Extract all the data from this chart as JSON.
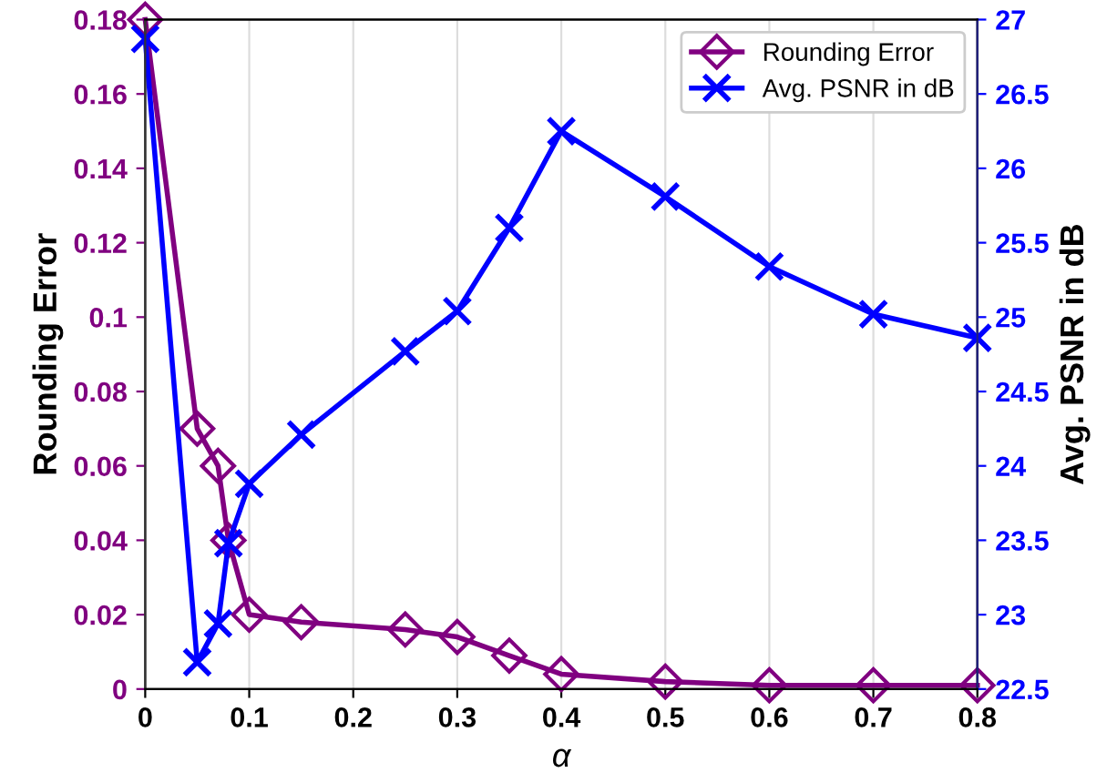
{
  "chart_data": {
    "type": "line",
    "xlabel": "α",
    "ylabel": "Rounding Error",
    "y2label": "Avg. PSNR in dB",
    "x": [
      0,
      0.05,
      0.07,
      0.08,
      0.1,
      0.15,
      0.25,
      0.3,
      0.35,
      0.4,
      0.5,
      0.6,
      0.7,
      0.8
    ],
    "series": [
      {
        "name": "Rounding Error",
        "color": "#800080",
        "marker": "diamond",
        "values": [
          0.18,
          0.07,
          0.06,
          0.04,
          0.02,
          0.018,
          0.016,
          0.014,
          0.009,
          0.004,
          0.002,
          0.001,
          0.001,
          0.001
        ]
      },
      {
        "name": "Avg. PSNR in dB",
        "color": "#0000ff",
        "marker": "cross",
        "axis": "y2",
        "values": [
          26.87,
          22.68,
          22.94,
          23.48,
          23.88,
          24.21,
          24.77,
          25.04,
          25.6,
          26.25,
          25.81,
          25.34,
          25.02,
          24.86
        ]
      }
    ],
    "xlim": [
      0,
      0.8
    ],
    "xticks": [
      0,
      0.1,
      0.2,
      0.3,
      0.4,
      0.5,
      0.6,
      0.7,
      0.8
    ],
    "ylim": [
      0,
      0.18
    ],
    "yticks": [
      0,
      0.02,
      0.04,
      0.06,
      0.08,
      0.1,
      0.12,
      0.14,
      0.16,
      0.18
    ],
    "y2lim": [
      22.5,
      27
    ],
    "y2ticks": [
      22.5,
      23,
      23.5,
      24,
      24.5,
      25,
      25.5,
      26,
      26.5,
      27
    ],
    "grid": "x",
    "legend": "top right",
    "line_style": "solid"
  }
}
